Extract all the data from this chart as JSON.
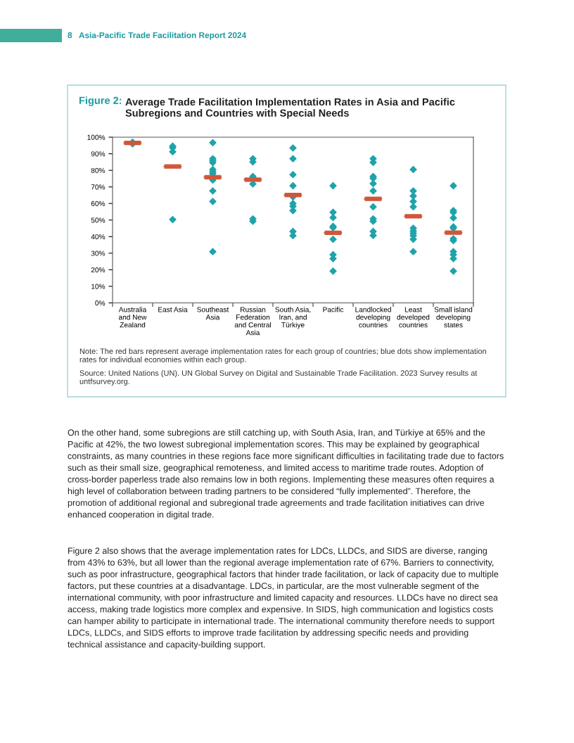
{
  "chart_data": {
    "type": "scatter",
    "title": "Figure 2: Average Trade Facilitation Implementation Rates in Asia and Pacific Subregions and Countries with Special Needs",
    "categories": [
      "Australia\nand New\nZealand",
      "East Asia",
      "Southeast\nAsia",
      "Russian\nFederation\nand Central\nAsia",
      "South Asia,\nIran, and\nTürkiye",
      "Pacific",
      "Landlocked\ndeveloping\ncountries",
      "Least\ndeveloped\ncountries",
      "Small island\ndeveloping\nstates"
    ],
    "ylim": [
      0,
      100
    ],
    "yticks": [
      {
        "value": 0,
        "label": "0%"
      },
      {
        "value": 10,
        "label": "10%"
      },
      {
        "value": 20,
        "label": "20%"
      },
      {
        "value": 30,
        "label": "30%"
      },
      {
        "value": 40,
        "label": "40%"
      },
      {
        "value": 50,
        "label": "50%"
      },
      {
        "value": 60,
        "label": "60%"
      },
      {
        "value": 70,
        "label": "70%"
      },
      {
        "value": 80,
        "label": "80%"
      },
      {
        "value": 90,
        "label": "90%"
      },
      {
        "value": 100,
        "label": "100%"
      }
    ],
    "grid": false,
    "legend": false,
    "series": [
      {
        "marker": "diamond",
        "color": "#1fa3aa",
        "x": [
          "Australia\nand New\nZealand",
          "Australia\nand New\nZealand",
          "East Asia",
          "East Asia",
          "East Asia",
          "East Asia",
          "Southeast\nAsia",
          "Southeast\nAsia",
          "Southeast\nAsia",
          "Southeast\nAsia",
          "Southeast\nAsia",
          "Southeast\nAsia",
          "Southeast\nAsia",
          "Southeast\nAsia",
          "Southeast\nAsia",
          "Southeast\nAsia",
          "Southeast\nAsia",
          "Russian\nFederation\nand Central\nAsia",
          "Russian\nFederation\nand Central\nAsia",
          "Russian\nFederation\nand Central\nAsia",
          "Russian\nFederation\nand Central\nAsia",
          "Russian\nFederation\nand Central\nAsia",
          "Russian\nFederation\nand Central\nAsia",
          "Russian\nFederation\nand Central\nAsia",
          "South Asia,\nIran, and\nTürkiye",
          "South Asia,\nIran, and\nTürkiye",
          "South Asia,\nIran, and\nTürkiye",
          "South Asia,\nIran, and\nTürkiye",
          "South Asia,\nIran, and\nTürkiye",
          "South Asia,\nIran, and\nTürkiye",
          "South Asia,\nIran, and\nTürkiye",
          "South Asia,\nIran, and\nTürkiye",
          "South Asia,\nIran, and\nTürkiye",
          "South Asia,\nIran, and\nTürkiye",
          "Pacific",
          "Pacific",
          "Pacific",
          "Pacific",
          "Pacific",
          "Pacific",
          "Pacific",
          "Pacific",
          "Pacific",
          "Landlocked\ndeveloping\ncountries",
          "Landlocked\ndeveloping\ncountries",
          "Landlocked\ndeveloping\ncountries",
          "Landlocked\ndeveloping\ncountries",
          "Landlocked\ndeveloping\ncountries",
          "Landlocked\ndeveloping\ncountries",
          "Landlocked\ndeveloping\ncountries",
          "Landlocked\ndeveloping\ncountries",
          "Landlocked\ndeveloping\ncountries",
          "Landlocked\ndeveloping\ncountries",
          "Landlocked\ndeveloping\ncountries",
          "Least\ndeveloped\ncountries",
          "Least\ndeveloped\ncountries",
          "Least\ndeveloped\ncountries",
          "Least\ndeveloped\ncountries",
          "Least\ndeveloped\ncountries",
          "Least\ndeveloped\ncountries",
          "Least\ndeveloped\ncountries",
          "Least\ndeveloped\ncountries",
          "Least\ndeveloped\ncountries",
          "Least\ndeveloped\ncountries",
          "Least\ndeveloped\ncountries",
          "Small island\ndeveloping\nstates",
          "Small island\ndeveloping\nstates",
          "Small island\ndeveloping\nstates",
          "Small island\ndeveloping\nstates",
          "Small island\ndeveloping\nstates",
          "Small island\ndeveloping\nstates",
          "Small island\ndeveloping\nstates",
          "Small island\ndeveloping\nstates",
          "Small island\ndeveloping\nstates",
          "Small island\ndeveloping\nstates",
          "Small island\ndeveloping\nstates",
          "Small island\ndeveloping\nstates"
        ],
        "values": [
          97,
          96,
          94.6,
          93.6,
          91.2,
          50.3,
          96.7,
          87,
          85.9,
          84.7,
          80.5,
          79.1,
          77.9,
          74.1,
          67.6,
          61.2,
          30.9,
          87,
          85.1,
          76.3,
          75.5,
          71.8,
          50.7,
          49.3,
          93.5,
          87,
          77.4,
          70.7,
          64,
          60,
          58.3,
          55.7,
          43.1,
          40.6,
          70.7,
          54.7,
          51.5,
          46.2,
          45.4,
          38.4,
          29.1,
          26.7,
          19.2,
          87,
          84.8,
          76.3,
          75.2,
          72,
          67.6,
          58,
          50.7,
          49.3,
          43.1,
          40.7,
          80.5,
          67.6,
          64.5,
          61.2,
          58,
          45.1,
          43.4,
          42,
          40.6,
          38.4,
          30.9,
          70.7,
          55.7,
          54.6,
          51.3,
          45.9,
          45.1,
          38.7,
          37.6,
          30.9,
          29.1,
          26.7,
          19.2
        ]
      },
      {
        "type": "box",
        "color": "#d0573a",
        "boxes": [
          {
            "low": 96.6,
            "q1": 96.6,
            "median": 96.6,
            "q3": 96.6,
            "high": 96.6
          },
          {
            "low": 82.3,
            "q1": 82.3,
            "median": 82.3,
            "q3": 82.3,
            "high": 82.3
          },
          {
            "low": 75.9,
            "q1": 75.9,
            "median": 75.9,
            "q3": 75.9,
            "high": 75.9
          },
          {
            "low": 74.4,
            "q1": 74.4,
            "median": 74.4,
            "q3": 74.4,
            "high": 74.4
          },
          {
            "low": 65.1,
            "q1": 65.1,
            "median": 65.1,
            "q3": 65.1,
            "high": 65.1
          },
          {
            "low": 42.3,
            "q1": 42.3,
            "median": 42.3,
            "q3": 42.3,
            "high": 42.3
          },
          {
            "low": 62.8,
            "q1": 62.8,
            "median": 62.8,
            "q3": 62.8,
            "high": 62.8
          },
          {
            "low": 52.3,
            "q1": 52.3,
            "median": 52.3,
            "q3": 52.3,
            "high": 52.3
          },
          {
            "low": 42.4,
            "q1": 42.4,
            "median": 42.4,
            "q3": 42.4,
            "high": 42.4
          }
        ]
      }
    ],
    "annotations": [
      "8   Asia-Pacific Trade Facilitation Report 2024",
      "Note: The red bars represent average implementation rates for each group of countries; blue dots show implementation rates for individual economies within each group.",
      "Source: United Nations (UN). UN Global Survey on Digital and Sustainable Trade Facilitation. 2023 Survey results at untfsurvey.org.",
      "On the other hand, some subregions are still catching up, with South Asia, Iran, and Türkiye at 65% and the Pacific at 42%, the two lowest subregional implementation scores. This may be explained by geographical constraints, as many countries in these regions face more significant difficulties in facilitating trade due to factors such as their small size, geographical remoteness, and limited access to maritime trade routes. Adoption of cross-border paperless trade also remains low in both regions. Implementing these measures often requires a high level of collaboration between trading partners to be considered “fully implemented”. Therefore, the promotion of additional regional and subregional trade agreements and trade facilitation initiatives can drive enhanced cooperation in digital trade.",
      "Figure 2 also shows that the average implementation rates for LDCs, LLDCs, and SIDS are diverse, ranging from 43% to 63%, but all lower than the regional average implementation rate of 67%. Barriers to connectivity, such as poor infrastructure, geographical factors that hinder trade facilitation, or lack of capacity due to multiple factors, put these countries at a disadvantage. LDCs, in particular, are the most vulnerable segment of the international community, with poor infrastructure and limited capacity and resources. LLDCs have no direct sea access, making trade logistics more complex and expensive. In SIDS, high communication and logistics costs can hamper ability to participate in international trade. The international community therefore needs to support LDCs, LLDCs, and SIDS efforts to improve trade facilitation by addressing specific needs and providing technical assistance and capacity-building support."
    ]
  }
}
